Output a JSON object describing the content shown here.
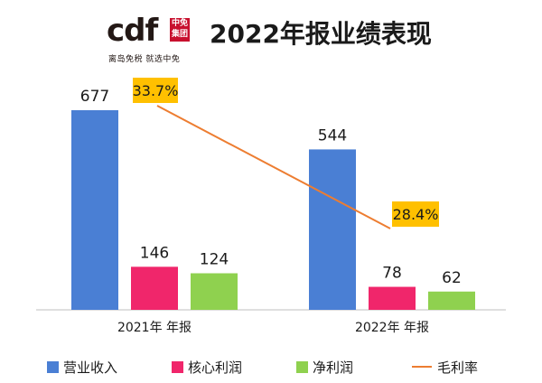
{
  "header": {
    "title": "2022年报业绩表现",
    "logo_word": "cdf",
    "logo_seal": "中免集团",
    "logo_tagline": "离岛免税 就选中免"
  },
  "colors": {
    "revenue": "#4a7fd4",
    "core_profit": "#f0266b",
    "net_profit": "#8fd14f",
    "margin_line": "#ed7d31",
    "margin_label_bg": "#ffc000",
    "axis": "#bfbfbf",
    "text": "#1a1a1a"
  },
  "chart_data": {
    "type": "bar",
    "title": "2022年报业绩表现",
    "categories": [
      "2021年 年报",
      "2022年 年报"
    ],
    "series": [
      {
        "name": "营业收入",
        "values": [
          677,
          544
        ],
        "labels": [
          "677",
          "544"
        ]
      },
      {
        "name": "核心利润",
        "values": [
          146,
          78
        ],
        "labels": [
          "146",
          "78"
        ]
      },
      {
        "name": "净利润",
        "values": [
          124,
          62
        ],
        "labels": [
          "124",
          "62"
        ]
      }
    ],
    "line_series": {
      "name": "毛利率",
      "values": [
        33.7,
        28.4
      ],
      "labels": [
        "33.7%",
        "28.4%"
      ],
      "ylim": [
        0,
        50
      ]
    },
    "xlabel": "",
    "ylabel": "",
    "ylim": [
      0,
      800
    ],
    "grid": false,
    "legend_position": "bottom"
  },
  "legend": [
    {
      "label": "营业收入",
      "kind": "bar"
    },
    {
      "label": "核心利润",
      "kind": "bar"
    },
    {
      "label": "净利润",
      "kind": "bar"
    },
    {
      "label": "毛利率",
      "kind": "line"
    }
  ]
}
